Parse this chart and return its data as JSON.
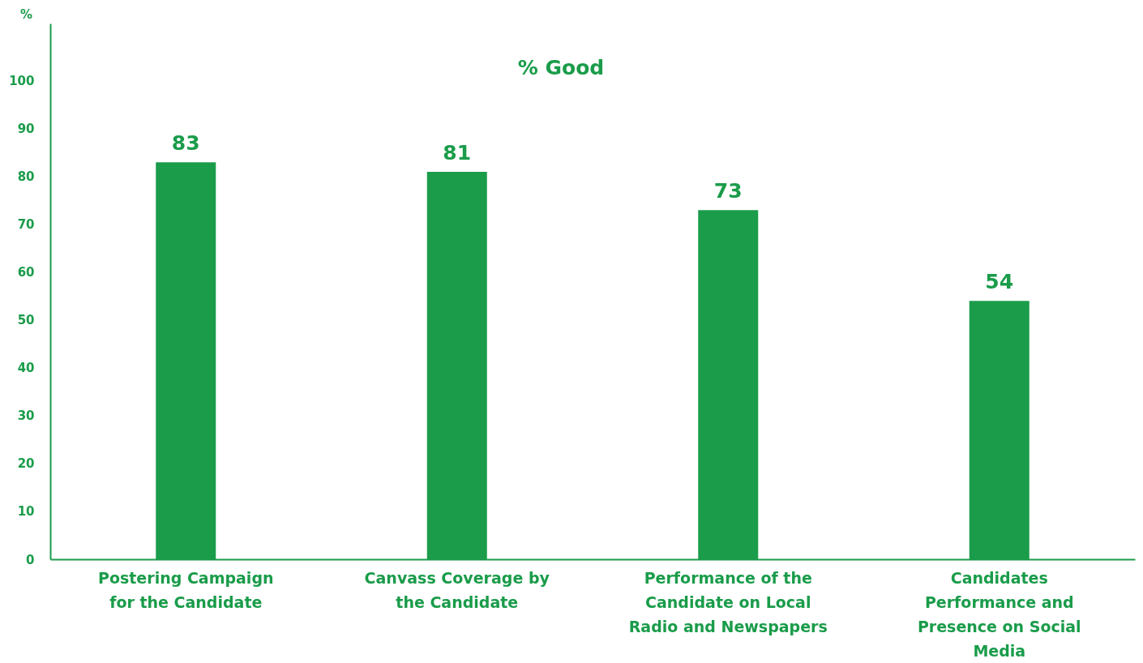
{
  "chart_data": {
    "type": "bar",
    "title": "% Good",
    "ylabel": "%",
    "categories": [
      "Postering Campaign for the Candidate",
      "Canvass Coverage by the Candidate",
      "Performance of the Candidate on Local Radio and Newspapers",
      "Candidates Performance and Presence on Social Media"
    ],
    "values": [
      83,
      81,
      73,
      54
    ],
    "color": "#1a9c4a",
    "ylim": [
      0,
      112
    ],
    "yticks": [
      0,
      10,
      20,
      30,
      40,
      50,
      60,
      70,
      80,
      90,
      100
    ],
    "data_labels": true,
    "grid": false
  }
}
